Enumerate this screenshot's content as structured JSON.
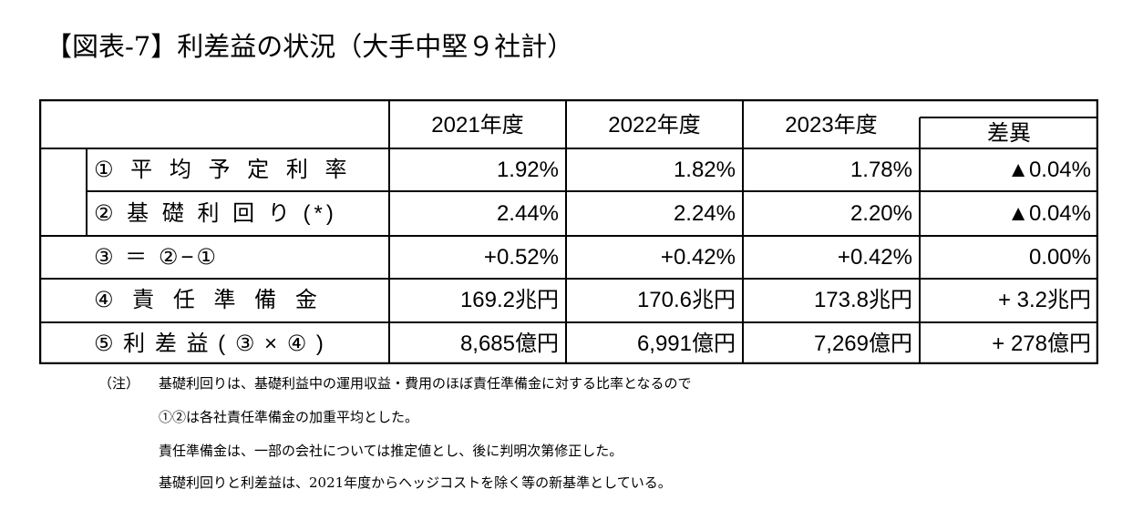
{
  "title": "【図表-7】利差益の状況（大手中堅９社計）",
  "table": {
    "headers": [
      "2021年度",
      "2022年度",
      "2023年度",
      "差異"
    ],
    "rows": [
      {
        "label": "① 平 均 予 定 利 率",
        "values": [
          "1.92%",
          "1.82%",
          "1.78%",
          "▲0.04%"
        ]
      },
      {
        "label": "② 基 礎 利 回 り (*)",
        "values": [
          "2.44%",
          "2.24%",
          "2.20%",
          "▲0.04%"
        ]
      },
      {
        "label": "③ ＝ ②−①",
        "values": [
          "+0.52%",
          "+0.42%",
          "+0.42%",
          "0.00%"
        ]
      },
      {
        "label": "④ 責 任 準 備 金",
        "values": [
          "169.2兆円",
          "170.6兆円",
          "173.8兆円",
          "+ 3.2兆円"
        ]
      },
      {
        "label": "⑤ 利 差 益 ( ③ × ④ )",
        "values": [
          "8,685億円",
          "6,991億円",
          "7,269億円",
          "+ 278億円"
        ]
      }
    ]
  },
  "notes": {
    "prefix": "（注）",
    "lines": [
      "基礎利回りは、基礎利益中の運用収益・費用のほぼ責任準備金に対する比率となるので",
      "①②は各社責任準備金の加重平均とした。",
      "責任準備金は、一部の会社については推定値とし、後に判明次第修正した。",
      "基礎利回りと利差益は、2021年度からヘッジコストを除く等の新基準としている。"
    ]
  }
}
